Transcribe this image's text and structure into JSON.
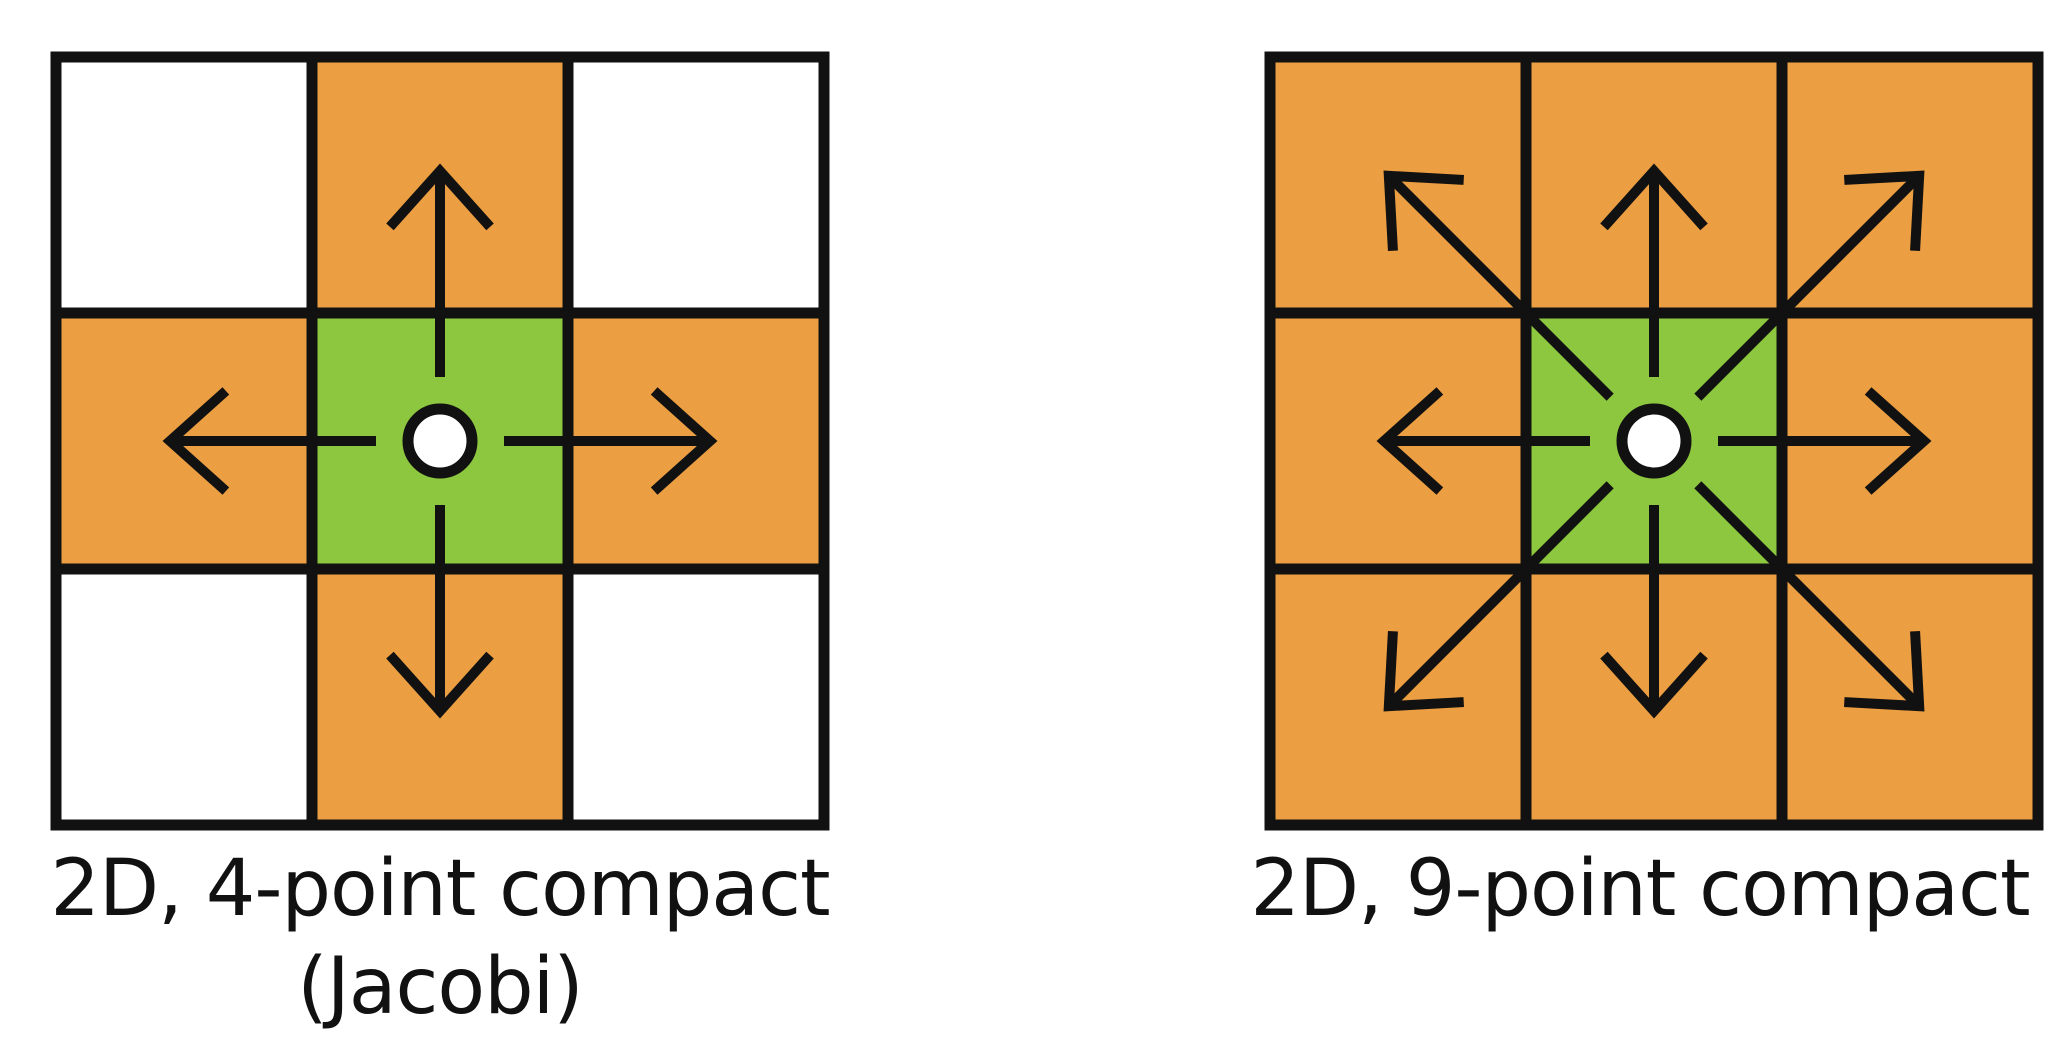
{
  "colors": {
    "stencil_neighbor": "#EB9E42",
    "center_cell": "#8DC63F",
    "empty_cell": "#FFFFFF",
    "lines": "#111111",
    "center_point": "#FFFFFF"
  },
  "diagrams": [
    {
      "id": "four-point",
      "caption_line1": "2D, 4-point compact",
      "caption_line2": "(Jacobi)",
      "cells": [
        [
          "empty",
          "neighbor",
          "empty"
        ],
        [
          "neighbor",
          "center",
          "neighbor"
        ],
        [
          "empty",
          "neighbor",
          "empty"
        ]
      ],
      "arrows": [
        "up",
        "left",
        "right",
        "down"
      ]
    },
    {
      "id": "nine-point",
      "caption_line1": "2D, 9-point compact",
      "caption_line2": "",
      "cells": [
        [
          "neighbor",
          "neighbor",
          "neighbor"
        ],
        [
          "neighbor",
          "center",
          "neighbor"
        ],
        [
          "neighbor",
          "neighbor",
          "neighbor"
        ]
      ],
      "arrows": [
        "up-left",
        "up",
        "up-right",
        "left",
        "right",
        "down-left",
        "down",
        "down-right"
      ]
    }
  ]
}
